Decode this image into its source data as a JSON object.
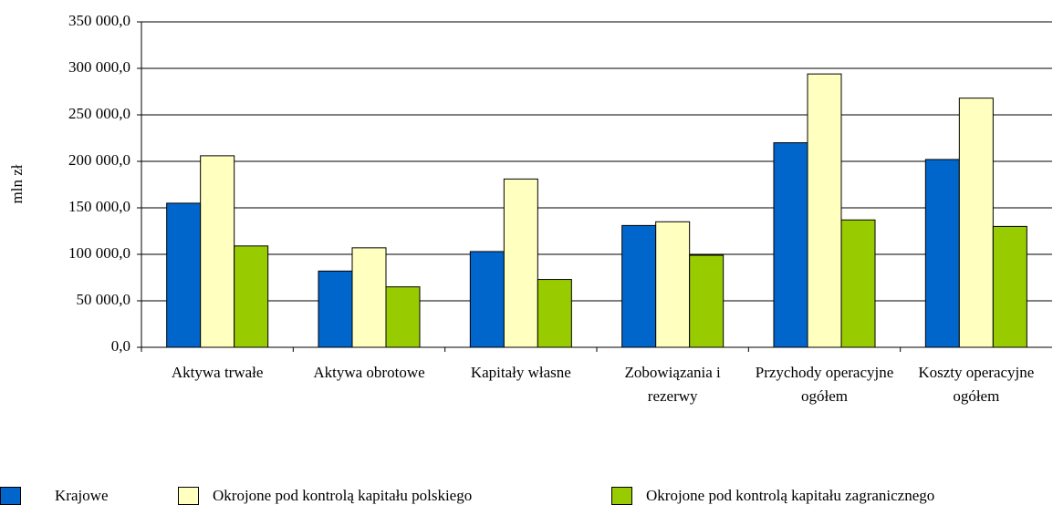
{
  "chart_data": {
    "type": "bar",
    "y_label": "mln zł",
    "categories": [
      "Aktywa trwałe",
      "Aktywa obrotowe",
      "Kapitały własne",
      "Zobowiązania i rezerwy",
      "Przychody operacyjne ogółem",
      "Koszty operacyjne ogółem"
    ],
    "series": [
      {
        "name": "Krajowe",
        "color": "#0066cc",
        "values": [
          155000,
          82000,
          103000,
          131000,
          220000,
          202000
        ]
      },
      {
        "name": "Okrojone pod kontrolą kapitału polskiego",
        "color": "#ffffc0",
        "values": [
          206000,
          107000,
          181000,
          135000,
          294000,
          268000
        ]
      },
      {
        "name": "Okrojone pod kontrolą kapitału zagranicznego",
        "color": "#99cc00",
        "values": [
          109000,
          65000,
          73000,
          99000,
          137000,
          130000
        ]
      }
    ],
    "ylim": [
      0,
      350000
    ],
    "yticks": [
      {
        "value": 0,
        "label": "0,0"
      },
      {
        "value": 50000,
        "label": "50 000,0"
      },
      {
        "value": 100000,
        "label": "100 000,0"
      },
      {
        "value": 150000,
        "label": "150 000,0"
      },
      {
        "value": 200000,
        "label": "200 000,0"
      },
      {
        "value": 250000,
        "label": "250 000,0"
      },
      {
        "value": 300000,
        "label": "300 000,0"
      },
      {
        "value": 350000,
        "label": "350 000,0"
      }
    ],
    "grid": true,
    "legend": "bottom"
  }
}
